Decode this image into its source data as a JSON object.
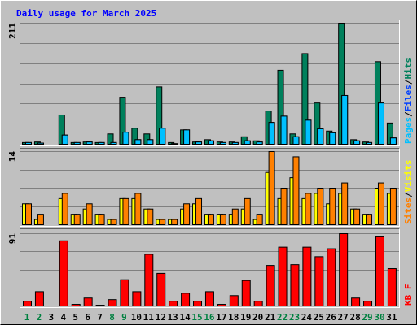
{
  "chart_data": [
    {
      "type": "bar",
      "title": "Daily usage for March 2025",
      "ylim": [
        0,
        211
      ],
      "yticks": [
        211
      ],
      "separator": "/",
      "series": [
        {
          "name": "Hits",
          "color": "#00805c",
          "values": [
            3,
            4,
            0,
            51,
            3,
            4,
            3,
            18,
            82,
            28,
            18,
            100,
            3,
            25,
            4,
            8,
            4,
            4,
            13,
            6,
            58,
            129,
            18,
            158,
            72,
            23,
            211,
            8,
            4,
            144,
            37
          ]
        },
        {
          "name": "Files",
          "color": "#0040ff",
          "values": [
            3,
            2,
            0,
            16,
            3,
            4,
            3,
            3,
            21,
            8,
            8,
            28,
            1,
            25,
            4,
            6,
            3,
            3,
            6,
            4,
            38,
            49,
            13,
            42,
            27,
            20,
            85,
            6,
            3,
            72,
            11
          ]
        },
        {
          "name": "Pages",
          "color": "#00c0ff",
          "values": [
            3,
            2,
            0,
            16,
            3,
            4,
            3,
            3,
            21,
            8,
            8,
            28,
            1,
            25,
            4,
            6,
            3,
            3,
            6,
            4,
            38,
            49,
            13,
            42,
            27,
            20,
            85,
            6,
            3,
            72,
            11
          ]
        }
      ]
    },
    {
      "type": "bar",
      "ylim": [
        0,
        14
      ],
      "yticks": [
        14
      ],
      "separator": "/",
      "series": [
        {
          "name": "Visits",
          "color": "#ffff00",
          "values": [
            4,
            1,
            0,
            5,
            2,
            3,
            2,
            1,
            5,
            5,
            3,
            1,
            1,
            3,
            4,
            2,
            2,
            2,
            3,
            1,
            10,
            5,
            9,
            5,
            6,
            4,
            6,
            3,
            2,
            7,
            6
          ]
        },
        {
          "name": "Sites",
          "color": "#ff8000",
          "values": [
            4,
            2,
            0,
            6,
            2,
            4,
            2,
            1,
            5,
            6,
            3,
            1,
            1,
            4,
            5,
            2,
            2,
            3,
            5,
            2,
            14,
            7,
            13,
            6,
            7,
            7,
            8,
            3,
            2,
            8,
            7
          ]
        }
      ]
    },
    {
      "type": "bar",
      "ylim": [
        0,
        91
      ],
      "yticks": [
        91
      ],
      "categories": [
        "1",
        "2",
        "3",
        "4",
        "5",
        "6",
        "7",
        "8",
        "9",
        "10",
        "11",
        "12",
        "13",
        "14",
        "15",
        "16",
        "17",
        "18",
        "19",
        "20",
        "21",
        "22",
        "23",
        "24",
        "25",
        "26",
        "27",
        "28",
        "29",
        "30",
        "31"
      ],
      "label_colors": [
        "#008040",
        "#008040",
        "#000000",
        "#000000",
        "#000000",
        "#000000",
        "#000000",
        "#008040",
        "#008040",
        "#000000",
        "#000000",
        "#000000",
        "#000000",
        "#000000",
        "#008040",
        "#008040",
        "#000000",
        "#000000",
        "#000000",
        "#000000",
        "#000000",
        "#008040",
        "#008040",
        "#000000",
        "#000000",
        "#000000",
        "#000000",
        "#000000",
        "#008040",
        "#008040",
        "#000000"
      ],
      "series": [
        {
          "name": "KB F",
          "color": "#ff0000",
          "values": [
            6,
            18,
            0,
            82,
            2,
            10,
            1,
            8,
            33,
            18,
            65,
            41,
            6,
            16,
            6,
            18,
            2,
            13,
            32,
            6,
            51,
            74,
            52,
            74,
            62,
            72,
            91,
            10,
            6,
            87,
            47
          ]
        }
      ]
    }
  ]
}
